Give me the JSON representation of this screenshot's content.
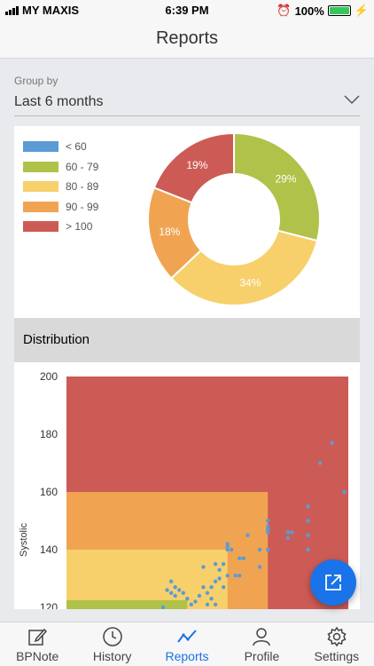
{
  "status_bar": {
    "carrier": "MY MAXIS",
    "time": "6:39 PM",
    "battery": "100%"
  },
  "nav": {
    "title": "Reports"
  },
  "group_by": {
    "label": "Group by",
    "value": "Last 6 months"
  },
  "colors": {
    "lt60": "#5b9bd5",
    "60_79": "#b0c24a",
    "80_89": "#f7d06b",
    "90_99": "#f0a452",
    "gt100": "#cd5b55",
    "accent": "#1a73e8"
  },
  "legend": [
    {
      "label": "< 60",
      "color": "#5b9bd5"
    },
    {
      "label": "60 - 79",
      "color": "#b0c24a"
    },
    {
      "label": "80 - 89",
      "color": "#f7d06b"
    },
    {
      "label": "90 - 99",
      "color": "#f0a452"
    },
    {
      "label": "> 100",
      "color": "#cd5b55"
    }
  ],
  "distribution": {
    "title": "Distribution"
  },
  "chart_data": [
    {
      "type": "pie",
      "categories": [
        "60 - 79",
        "80 - 89",
        "90 - 99",
        "> 100"
      ],
      "values": [
        29,
        34,
        18,
        19
      ],
      "labels": [
        "29%",
        "34%",
        "18%",
        "19%"
      ],
      "colors": [
        "#b0c24a",
        "#f7d06b",
        "#f0a452",
        "#cd5b55"
      ],
      "donut": true
    },
    {
      "type": "scatter",
      "ylabel": "Systolic",
      "ylim": [
        120,
        200
      ],
      "yticks": [
        120,
        140,
        160,
        180,
        200
      ],
      "xlim": [
        40,
        110
      ],
      "zones": [
        {
          "x": [
            40,
            110
          ],
          "y": [
            120,
            200
          ],
          "color": "#cd5b55"
        },
        {
          "x": [
            40,
            90
          ],
          "y": [
            120,
            160
          ],
          "color": "#f0a452"
        },
        {
          "x": [
            40,
            80
          ],
          "y": [
            120,
            140
          ],
          "color": "#f7d06b"
        },
        {
          "x": [
            40,
            70
          ],
          "y": [
            120,
            122.5
          ],
          "color": "#b0c24a"
        }
      ],
      "points": [
        [
          80,
          142
        ],
        [
          80,
          141
        ],
        [
          81,
          140
        ],
        [
          83,
          131
        ],
        [
          83,
          137
        ],
        [
          84,
          137
        ],
        [
          79,
          135
        ],
        [
          85,
          145
        ],
        [
          80,
          131
        ],
        [
          82,
          131
        ],
        [
          78,
          133
        ],
        [
          77,
          129
        ],
        [
          76,
          127
        ],
        [
          77,
          121
        ],
        [
          75,
          125
        ],
        [
          76,
          123
        ],
        [
          74,
          127
        ],
        [
          73,
          124
        ],
        [
          72,
          122
        ],
        [
          71,
          121
        ],
        [
          70,
          123
        ],
        [
          69,
          125
        ],
        [
          68,
          126
        ],
        [
          67,
          124
        ],
        [
          67,
          127
        ],
        [
          66,
          129
        ],
        [
          66,
          125
        ],
        [
          65,
          126
        ],
        [
          64,
          120
        ],
        [
          74,
          134
        ],
        [
          77,
          135
        ],
        [
          75,
          121
        ],
        [
          79,
          127
        ],
        [
          80,
          140
        ],
        [
          78,
          130
        ],
        [
          88,
          140
        ],
        [
          88,
          134
        ],
        [
          90,
          140
        ],
        [
          90,
          146
        ],
        [
          90,
          147
        ],
        [
          90,
          148
        ],
        [
          90,
          150
        ],
        [
          95,
          144
        ],
        [
          95,
          146
        ],
        [
          96,
          146
        ],
        [
          100,
          140
        ],
        [
          100,
          145
        ],
        [
          100,
          150
        ],
        [
          100,
          155
        ],
        [
          103,
          170
        ],
        [
          106,
          177
        ],
        [
          109,
          160
        ]
      ]
    }
  ],
  "tabs": [
    {
      "label": "BPNote",
      "icon": "note-edit-icon"
    },
    {
      "label": "History",
      "icon": "clock-icon"
    },
    {
      "label": "Reports",
      "icon": "trend-chart-icon"
    },
    {
      "label": "Profile",
      "icon": "person-icon"
    },
    {
      "label": "Settings",
      "icon": "gear-icon"
    }
  ]
}
